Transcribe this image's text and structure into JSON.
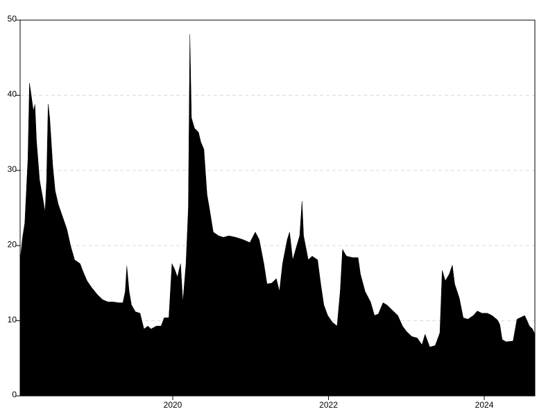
{
  "chart_data": {
    "type": "area",
    "color": "#000000",
    "grid": true,
    "xlim": [
      2018.04,
      2024.65
    ],
    "xticks": [
      2020,
      2022,
      2024
    ],
    "ylim": [
      0,
      50
    ],
    "yticks": [
      0,
      10,
      20,
      30,
      40,
      50
    ],
    "x": [
      2018.04,
      2018.07,
      2018.1,
      2018.14,
      2018.16,
      2018.18,
      2018.21,
      2018.23,
      2018.25,
      2018.29,
      2018.33,
      2018.36,
      2018.38,
      2018.4,
      2018.42,
      2018.46,
      2018.49,
      2018.53,
      2018.58,
      2018.64,
      2018.69,
      2018.74,
      2018.81,
      2018.85,
      2018.9,
      2018.96,
      2019.03,
      2019.1,
      2019.17,
      2019.24,
      2019.3,
      2019.36,
      2019.39,
      2019.41,
      2019.44,
      2019.47,
      2019.52,
      2019.58,
      2019.63,
      2019.68,
      2019.72,
      2019.79,
      2019.85,
      2019.89,
      2019.95,
      2019.99,
      2020.03,
      2020.06,
      2020.1,
      2020.13,
      2020.17,
      2020.2,
      2020.22,
      2020.24,
      2020.28,
      2020.33,
      2020.36,
      2020.4,
      2020.44,
      2020.47,
      2020.52,
      2020.59,
      2020.65,
      2020.72,
      2020.81,
      2020.9,
      2020.99,
      2021.06,
      2021.11,
      2021.17,
      2021.21,
      2021.27,
      2021.33,
      2021.37,
      2021.41,
      2021.47,
      2021.5,
      2021.54,
      2021.59,
      2021.63,
      2021.66,
      2021.68,
      2021.74,
      2021.79,
      2021.86,
      2021.9,
      2021.94,
      2021.99,
      2022.05,
      2022.11,
      2022.15,
      2022.18,
      2022.23,
      2022.31,
      2022.38,
      2022.41,
      2022.47,
      2022.54,
      2022.59,
      2022.64,
      2022.7,
      2022.75,
      2022.82,
      2022.89,
      2022.95,
      2023.0,
      2023.07,
      2023.14,
      2023.2,
      2023.24,
      2023.3,
      2023.37,
      2023.43,
      2023.46,
      2023.5,
      2023.55,
      2023.59,
      2023.62,
      2023.68,
      2023.73,
      2023.79,
      2023.86,
      2023.91,
      2023.97,
      2024.04,
      2024.1,
      2024.17,
      2024.2,
      2024.23,
      2024.28,
      2024.37,
      2024.42,
      2024.48,
      2024.52,
      2024.58,
      2024.62,
      2024.65
    ],
    "values": [
      18,
      21,
      23,
      31.5,
      41.6,
      40.2,
      37.9,
      38.8,
      34,
      28.7,
      26.4,
      24.5,
      28.7,
      38.8,
      37,
      30.5,
      27.3,
      25.5,
      24,
      22.2,
      19.9,
      18.1,
      17.6,
      16.5,
      15.3,
      14.4,
      13.5,
      12.8,
      12.5,
      12.5,
      12.4,
      12.4,
      13.9,
      17.3,
      13.9,
      12.1,
      11.2,
      11,
      8.9,
      9.3,
      8.9,
      9.3,
      9.3,
      10.4,
      10.4,
      17.6,
      16.7,
      15.8,
      17.6,
      12.5,
      17.6,
      25,
      48.1,
      37,
      35.6,
      35.1,
      33.8,
      32.8,
      26.8,
      25,
      21.8,
      21.3,
      21.1,
      21.3,
      21.1,
      20.8,
      20.4,
      21.8,
      20.8,
      17.6,
      14.9,
      15,
      15.6,
      13.9,
      17.6,
      20.8,
      21.8,
      18.1,
      19.9,
      21.3,
      25.9,
      21.3,
      18.1,
      18.6,
      18.1,
      14.9,
      12.1,
      10.7,
      9.8,
      9.3,
      13.9,
      19.5,
      18.6,
      18.4,
      18.4,
      16.2,
      13.9,
      12.5,
      10.7,
      10.9,
      12.4,
      12.1,
      11.4,
      10.7,
      9.3,
      8.6,
      7.9,
      7.7,
      6.8,
      8.2,
      6.5,
      6.7,
      8.4,
      16.7,
      15.3,
      16.2,
      17.4,
      14.9,
      13,
      10.4,
      10.2,
      10.7,
      11.3,
      11,
      11,
      10.7,
      10.1,
      9.5,
      7.5,
      7.2,
      7.3,
      10.2,
      10.5,
      10.7,
      9.3,
      8.9,
      8.2
    ]
  }
}
